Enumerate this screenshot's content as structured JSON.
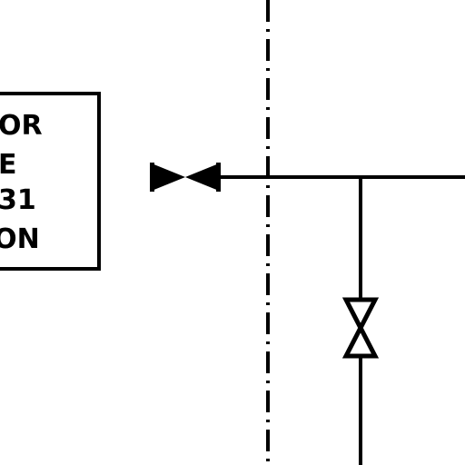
{
  "diagram": {
    "label_box": {
      "lines": [
        "OR",
        "E",
        "31",
        "ION"
      ]
    },
    "symbols": [
      {
        "name": "closed-gate-valve",
        "state": "closed"
      },
      {
        "name": "open-gate-valve",
        "state": "open"
      }
    ],
    "colors": {
      "line": "#000000",
      "background": "#ffffff"
    }
  }
}
